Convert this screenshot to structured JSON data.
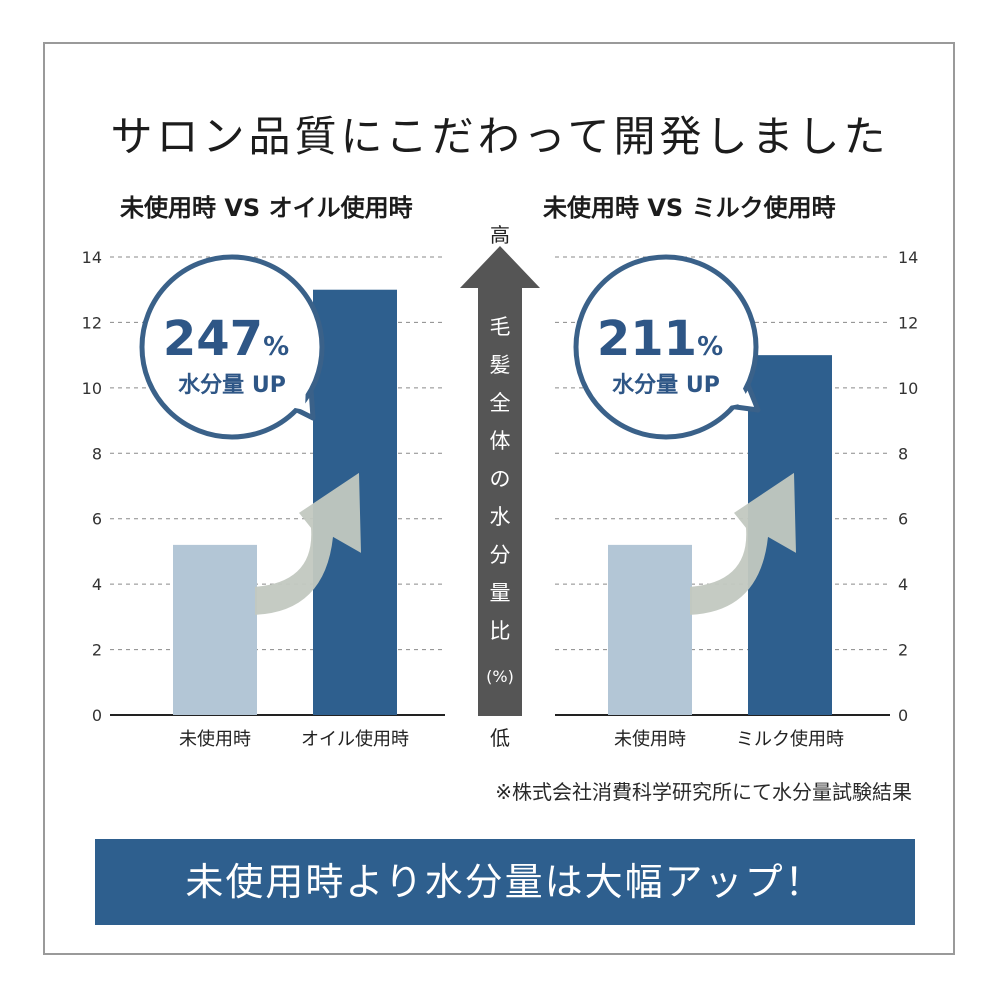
{
  "headline": "サロン品質にこだわって開発しました",
  "chart_data": [
    {
      "type": "bar",
      "title": "未使用時 VS オイル使用時",
      "categories": [
        "未使用時",
        "オイル使用時"
      ],
      "values": [
        5.2,
        13
      ],
      "ylim": [
        0,
        14
      ],
      "yticks": [
        0,
        2,
        4,
        6,
        8,
        10,
        12,
        14
      ],
      "grid": true,
      "bubble": {
        "value": "247",
        "unit": "%",
        "caption": "水分量 UP"
      }
    },
    {
      "type": "bar",
      "title": "未使用時 VS ミルク使用時",
      "categories": [
        "未使用時",
        "ミルク使用時"
      ],
      "values": [
        5.2,
        11
      ],
      "ylim": [
        0,
        14
      ],
      "yticks": [
        0,
        2,
        4,
        6,
        8,
        10,
        12,
        14
      ],
      "grid": true,
      "bubble": {
        "value": "211",
        "unit": "%",
        "caption": "水分量 UP"
      }
    }
  ],
  "axis_arrow": {
    "top": "高",
    "bottom": "低",
    "label_chars": [
      "毛",
      "髪",
      "全",
      "体",
      "の",
      "水",
      "分",
      "量",
      "比"
    ],
    "unit": "(%)"
  },
  "note": "※株式会社消費科学研究所にて水分量試験結果",
  "banner": "未使用時より水分量は大幅アップ！",
  "colors": {
    "bar_before": "#b3c6d6",
    "bar_after": "#2e5f8e",
    "arrow": "#c2c8c0",
    "center_arrow": "#555555",
    "bubble_stroke": "#3a6189",
    "text_blue": "#2e5686"
  }
}
